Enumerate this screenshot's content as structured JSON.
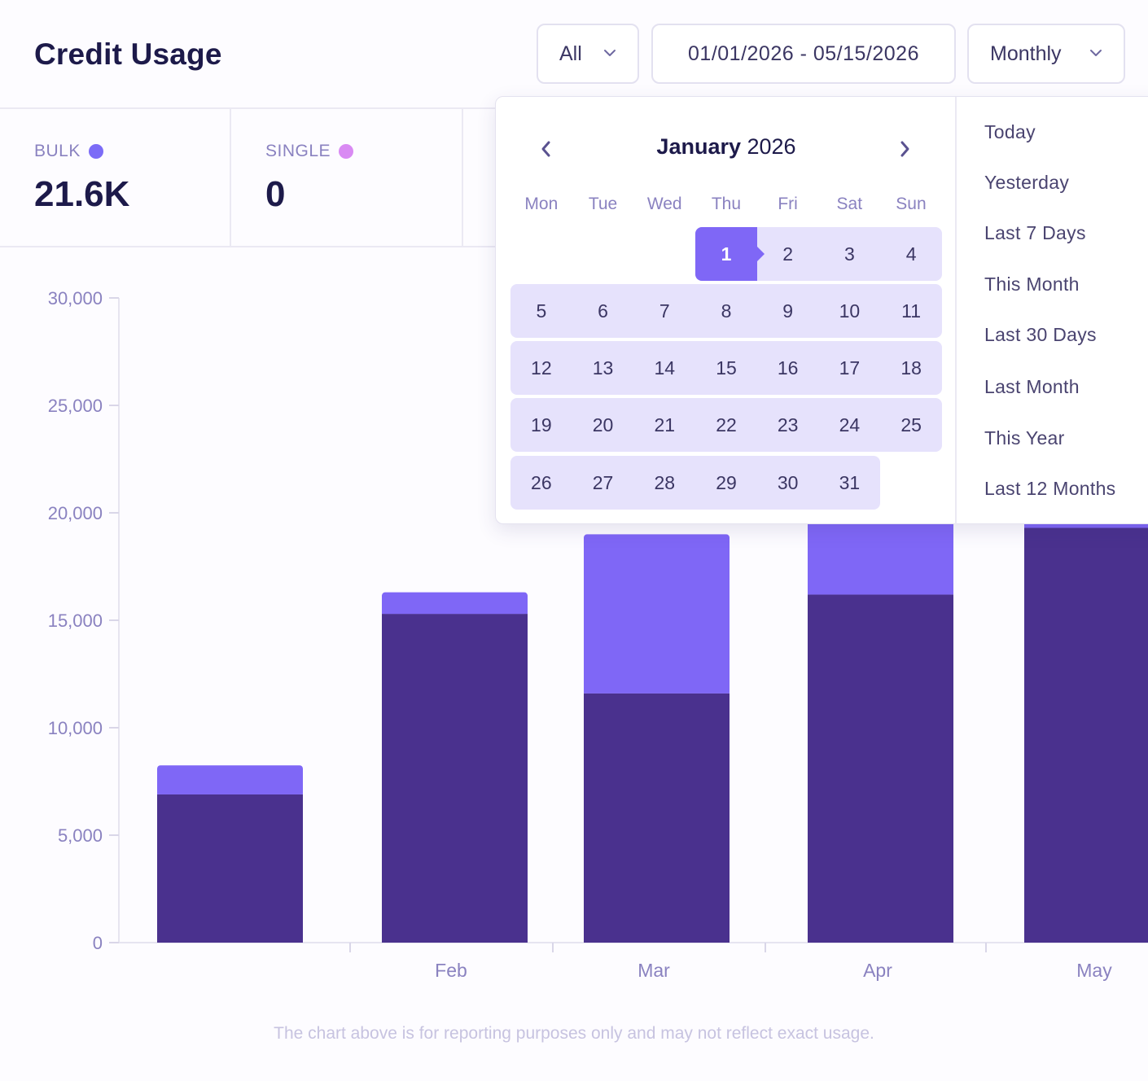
{
  "header": {
    "title": "Credit Usage",
    "filter_type": "All",
    "date_range": "01/01/2026 - 05/15/2026",
    "period": "Monthly"
  },
  "stats": [
    {
      "label": "BULK",
      "value": "21.6K",
      "dot_color": "#7c6cf7"
    },
    {
      "label": "SINGLE",
      "value": "0",
      "dot_color": "#d98af3"
    }
  ],
  "chart_data": {
    "type": "bar",
    "stacked": true,
    "categories": [
      "",
      "Feb",
      "Mar",
      "Apr",
      "May"
    ],
    "series": [
      {
        "color": "#4a318e",
        "values": [
          6900,
          15300,
          11600,
          16200,
          19300
        ]
      },
      {
        "color": "#7f67f6",
        "values": [
          1350,
          1000,
          7400,
          8500,
          6400
        ]
      }
    ],
    "y_ticks": [
      "30,000",
      "25,000",
      "20,000",
      "15,000",
      "10,000",
      "5,000",
      "0"
    ],
    "ylim": [
      0,
      30000
    ],
    "xlabel": "",
    "ylabel": "",
    "grid": false,
    "legend": "none"
  },
  "footnote": "The chart above is for reporting purposes only and may not reflect exact usage.",
  "calendar": {
    "month_label": "January",
    "year_label": "2026",
    "weekdays": [
      "Mon",
      "Tue",
      "Wed",
      "Thu",
      "Fri",
      "Sat",
      "Sun"
    ],
    "selected_day": "1",
    "weeks": [
      [
        "",
        "",
        "",
        "1",
        "2",
        "3",
        "4"
      ],
      [
        "5",
        "6",
        "7",
        "8",
        "9",
        "10",
        "11"
      ],
      [
        "12",
        "13",
        "14",
        "15",
        "16",
        "17",
        "18"
      ],
      [
        "19",
        "20",
        "21",
        "22",
        "23",
        "24",
        "25"
      ],
      [
        "26",
        "27",
        "28",
        "29",
        "30",
        "31",
        ""
      ]
    ]
  },
  "presets": [
    "Today",
    "Yesterday",
    "Last 7 Days",
    "This Month",
    "Last 30 Days",
    "Last Month",
    "This Year",
    "Last 12 Months"
  ]
}
